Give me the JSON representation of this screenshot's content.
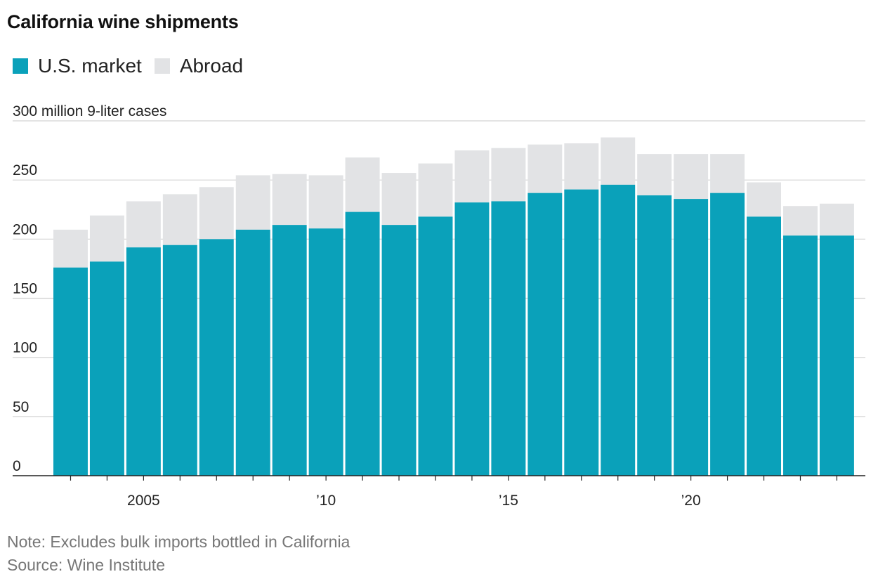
{
  "title": "California wine shipments",
  "legend": [
    {
      "label": "U.S. market",
      "color": "#0aa1ba"
    },
    {
      "label": "Abroad",
      "color": "#e2e3e5"
    }
  ],
  "note": "Note: Excludes bulk imports bottled in California",
  "source": "Source: Wine Institute",
  "chart_data": {
    "type": "bar",
    "stacked": true,
    "title": "California wine shipments",
    "unit_label": "300 million 9-liter cases",
    "ylim": [
      0,
      300
    ],
    "yticks": [
      0,
      50,
      100,
      150,
      200,
      250,
      300
    ],
    "ytick_labels": [
      "0",
      "50",
      "100",
      "150",
      "200",
      "250",
      ""
    ],
    "x": [
      2003,
      2004,
      2005,
      2006,
      2007,
      2008,
      2009,
      2010,
      2011,
      2012,
      2013,
      2014,
      2015,
      2016,
      2017,
      2018,
      2019,
      2020,
      2021,
      2022,
      2023,
      2024
    ],
    "xticks": [
      {
        "year": 2005,
        "label": "2005"
      },
      {
        "year": 2010,
        "label": "’10"
      },
      {
        "year": 2015,
        "label": "’15"
      },
      {
        "year": 2020,
        "label": "’20"
      }
    ],
    "series": [
      {
        "name": "U.S. market",
        "color": "#0aa1ba",
        "values": [
          176,
          181,
          193,
          195,
          200,
          208,
          212,
          209,
          223,
          212,
          219,
          231,
          232,
          239,
          242,
          246,
          237,
          234,
          239,
          219,
          203,
          203
        ]
      },
      {
        "name": "Abroad",
        "color": "#e2e3e5",
        "values": [
          32,
          39,
          39,
          43,
          44,
          46,
          43,
          45,
          46,
          44,
          45,
          44,
          45,
          41,
          39,
          40,
          35,
          38,
          33,
          29,
          25,
          27
        ]
      }
    ]
  }
}
